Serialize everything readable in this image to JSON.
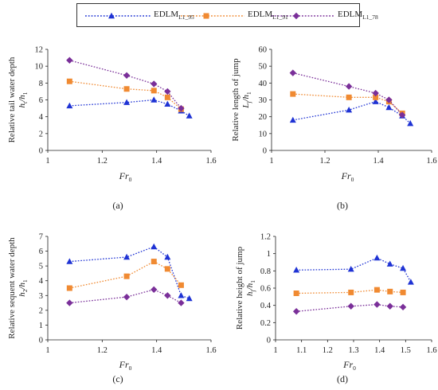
{
  "legend": [
    {
      "base": "EDLM",
      "sub": "L1_95",
      "color": "#1f33d4",
      "marker": "triangle"
    },
    {
      "base": "EDLM",
      "sub": "L1_91",
      "color": "#f08a32",
      "marker": "square"
    },
    {
      "base": "EDLM",
      "sub": "L1_78",
      "color": "#7a2f99",
      "marker": "diamond"
    }
  ],
  "chart_data": [
    {
      "type": "line",
      "panel_label": "(a)",
      "ylabel": "Relative tail water depth",
      "ylabel_var": "h",
      "ylabel_var_sub": "t",
      "ylabel_tail": "/h",
      "ylabel_tail_sub": "1",
      "xlabel": "Fr",
      "xlabel_sub": "0",
      "xlim": [
        1,
        1.6
      ],
      "xticks": [
        "1",
        "1.2",
        "1.4",
        "1.6"
      ],
      "ylim": [
        0,
        12
      ],
      "yticks": [
        "0",
        "2",
        "4",
        "6",
        "8",
        "10",
        "12"
      ],
      "series": [
        {
          "x": [
            1.08,
            1.29,
            1.39,
            1.44,
            1.49,
            1.52
          ],
          "y": [
            5.3,
            5.7,
            6.0,
            5.5,
            4.7,
            4.1
          ]
        },
        {
          "x": [
            1.08,
            1.29,
            1.39,
            1.44,
            1.49
          ],
          "y": [
            8.2,
            7.3,
            7.1,
            6.3,
            4.9
          ]
        },
        {
          "x": [
            1.08,
            1.29,
            1.39,
            1.44,
            1.49
          ],
          "y": [
            10.7,
            8.9,
            7.9,
            7.0,
            5.0
          ]
        }
      ]
    },
    {
      "type": "line",
      "panel_label": "(b)",
      "ylabel": "Relative length of jump",
      "ylabel_var": "L",
      "ylabel_var_sub": "j",
      "ylabel_tail": "/h",
      "ylabel_tail_sub": "1",
      "xlabel": "Fr",
      "xlabel_sub": "0",
      "xlim": [
        1,
        1.6
      ],
      "xticks": [
        "1",
        "1.2",
        "1.4",
        "1.6"
      ],
      "ylim": [
        0,
        60
      ],
      "yticks": [
        "0",
        "10",
        "20",
        "30",
        "40",
        "50",
        "60"
      ],
      "series": [
        {
          "x": [
            1.08,
            1.29,
            1.39,
            1.44,
            1.49,
            1.52
          ],
          "y": [
            18,
            24,
            29,
            25.5,
            20.5,
            16
          ]
        },
        {
          "x": [
            1.08,
            1.29,
            1.39,
            1.44,
            1.49
          ],
          "y": [
            33.5,
            31.5,
            31.5,
            29,
            22
          ]
        },
        {
          "x": [
            1.08,
            1.29,
            1.39,
            1.44,
            1.49
          ],
          "y": [
            46,
            38,
            34,
            30,
            21
          ]
        }
      ]
    },
    {
      "type": "line",
      "panel_label": "(c)",
      "ylabel": "Relative sequent water depth",
      "ylabel_var": "h",
      "ylabel_var_sub": "2",
      "ylabel_tail": "/h",
      "ylabel_tail_sub": "1",
      "xlabel": "Fr",
      "xlabel_sub": "0",
      "xlim": [
        1,
        1.6
      ],
      "xticks": [
        "1",
        "1.2",
        "1.4",
        "1.6"
      ],
      "ylim": [
        0,
        7
      ],
      "yticks": [
        "0",
        "1",
        "2",
        "3",
        "4",
        "5",
        "6",
        "7"
      ],
      "series": [
        {
          "x": [
            1.08,
            1.29,
            1.39,
            1.44,
            1.49,
            1.52
          ],
          "y": [
            5.3,
            5.6,
            6.3,
            5.6,
            3.0,
            2.8
          ]
        },
        {
          "x": [
            1.08,
            1.29,
            1.39,
            1.44,
            1.49
          ],
          "y": [
            3.5,
            4.3,
            5.3,
            4.8,
            3.7
          ]
        },
        {
          "x": [
            1.08,
            1.29,
            1.39,
            1.44,
            1.49
          ],
          "y": [
            2.5,
            2.9,
            3.4,
            3.0,
            2.5
          ]
        }
      ]
    },
    {
      "type": "line",
      "panel_label": "(d)",
      "ylabel": "Relative height of jump",
      "ylabel_var": "h",
      "ylabel_var_sub": "j",
      "ylabel_tail": "/h",
      "ylabel_tail_sub": "1",
      "xlabel": "Fr",
      "xlabel_sub": "0",
      "xlim": [
        1,
        1.6
      ],
      "xticks": [
        "1",
        "1.1",
        "1.2",
        "1.3",
        "1.4",
        "1.5",
        "1.6"
      ],
      "ylim": [
        0,
        1.2
      ],
      "yticks": [
        "0",
        "0.2",
        "0.4",
        "0.6",
        "0.8",
        "1",
        "1.2"
      ],
      "series": [
        {
          "x": [
            1.08,
            1.29,
            1.39,
            1.44,
            1.49,
            1.52
          ],
          "y": [
            0.81,
            0.82,
            0.95,
            0.88,
            0.83,
            0.67
          ]
        },
        {
          "x": [
            1.08,
            1.29,
            1.39,
            1.44,
            1.49
          ],
          "y": [
            0.54,
            0.55,
            0.58,
            0.56,
            0.55
          ]
        },
        {
          "x": [
            1.08,
            1.29,
            1.39,
            1.44,
            1.49
          ],
          "y": [
            0.33,
            0.39,
            0.41,
            0.39,
            0.38
          ]
        }
      ]
    }
  ]
}
